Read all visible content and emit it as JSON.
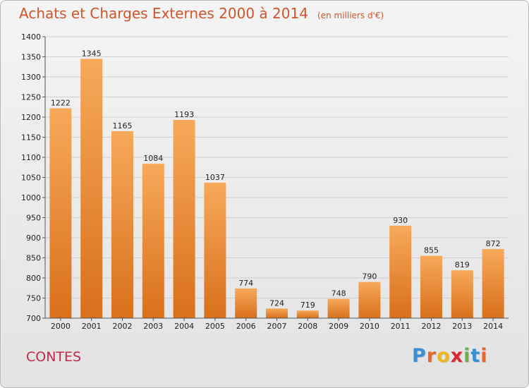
{
  "header": {
    "title": "Achats et Charges Externes 2000 à 2014",
    "unit": "(en milliers d'€)"
  },
  "footer": {
    "city": "CONTES",
    "logo_letters": [
      "P",
      "r",
      "o",
      "x",
      "i",
      "t",
      "i"
    ],
    "logo_colors": [
      "#3a8fd6",
      "#e9662c",
      "#f2b51d",
      "#d8282f",
      "#6ab04c",
      "#3a8fd6",
      "#e9662c"
    ]
  },
  "chart_data": {
    "type": "bar",
    "title": "Achats et Charges Externes 2000 à 2014",
    "subtitle": "(en milliers d'€)",
    "categories": [
      "2000",
      "2001",
      "2002",
      "2003",
      "2004",
      "2005",
      "2006",
      "2007",
      "2008",
      "2009",
      "2010",
      "2011",
      "2012",
      "2013",
      "2014"
    ],
    "values": [
      1222,
      1345,
      1165,
      1084,
      1193,
      1037,
      774,
      724,
      719,
      748,
      790,
      930,
      855,
      819,
      872
    ],
    "ylim": [
      700,
      1400
    ],
    "yticks": [
      700,
      750,
      800,
      850,
      900,
      950,
      1000,
      1050,
      1100,
      1150,
      1200,
      1250,
      1300,
      1350,
      1400
    ],
    "grid": true,
    "bar_color_light": "#f7a95a",
    "bar_color_dark": "#d8701c"
  }
}
